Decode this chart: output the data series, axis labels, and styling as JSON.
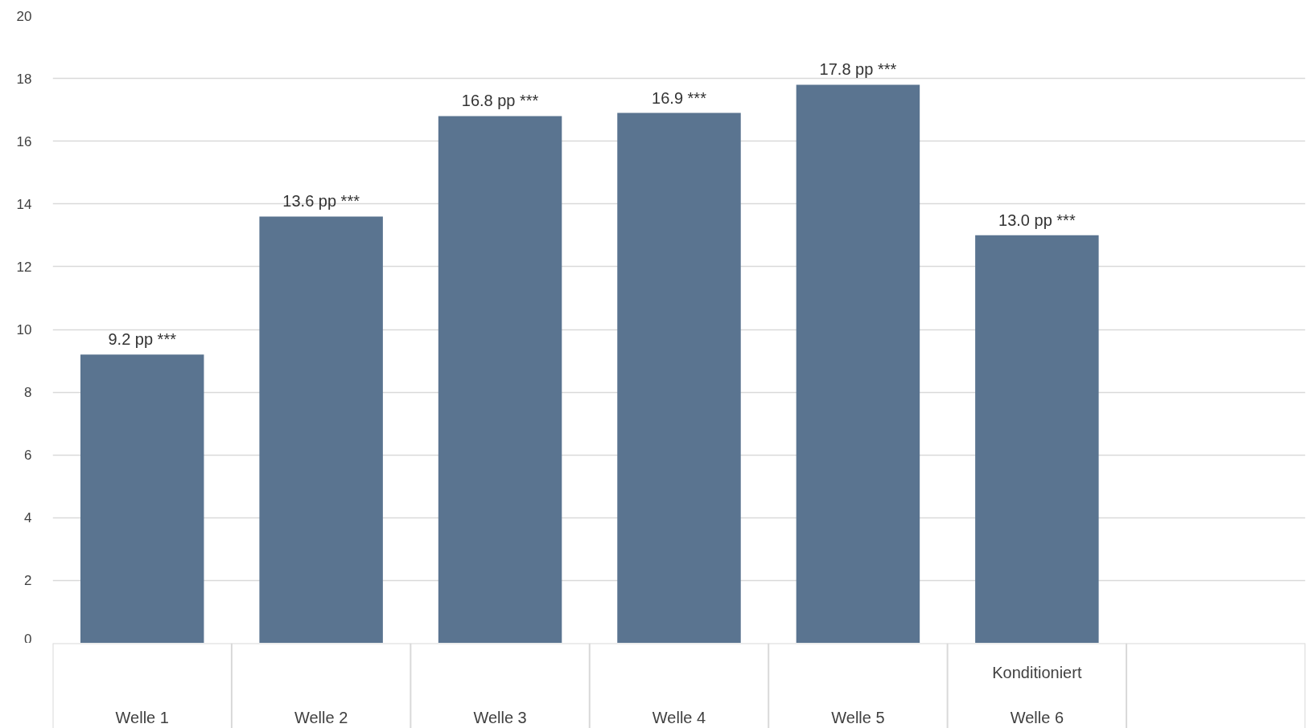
{
  "chart_data": {
    "type": "bar",
    "categories": [
      "Welle 1",
      "Welle 2",
      "Welle 3",
      "Welle 4",
      "Welle 5",
      "Welle 6",
      null
    ],
    "values": [
      9.2,
      13.6,
      16.8,
      16.9,
      17.8,
      13.0,
      null
    ],
    "value_labels": [
      "9.2 pp ***",
      "13.6 pp ***",
      "16.8 pp ***",
      "16.9 ***",
      "17.8 pp ***",
      "13.0 pp ***",
      null
    ],
    "color": "#5a7490",
    "ylim": [
      0,
      20
    ],
    "yticks": [
      0,
      2,
      4,
      6,
      8,
      10,
      12,
      14,
      16,
      18,
      20
    ],
    "grid": "y",
    "annotations": [
      "Konditioniert"
    ]
  }
}
